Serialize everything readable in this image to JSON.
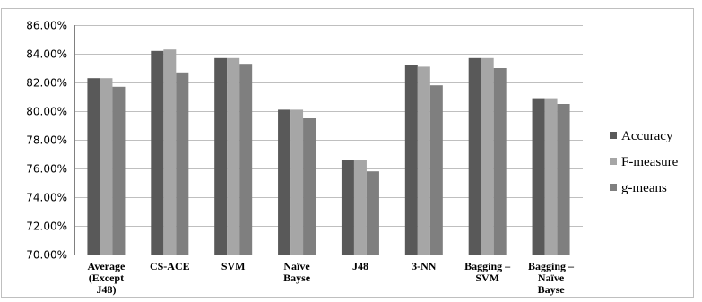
{
  "chart_data": {
    "type": "bar",
    "categories": [
      [
        "Average",
        "(Except",
        "J48)"
      ],
      [
        "CS-ACE"
      ],
      [
        "SVM"
      ],
      [
        "Naïve",
        "Bayse"
      ],
      [
        "J48"
      ],
      [
        "3-NN"
      ],
      [
        "Bagging –",
        "SVM"
      ],
      [
        "Bagging –",
        "Naïve",
        "Bayse"
      ]
    ],
    "series": [
      {
        "name": "Accuracy",
        "color": "#595959",
        "values": [
          82.3,
          84.2,
          83.7,
          80.1,
          76.6,
          83.2,
          83.7,
          80.9
        ]
      },
      {
        "name": "F-measure",
        "color": "#a6a6a6",
        "values": [
          82.3,
          84.3,
          83.7,
          80.1,
          76.6,
          83.1,
          83.7,
          80.9
        ]
      },
      {
        "name": "g-means",
        "color": "#7f7f7f",
        "values": [
          81.7,
          82.7,
          83.3,
          79.5,
          75.8,
          81.8,
          83.0,
          80.5
        ]
      }
    ],
    "ylim": [
      70,
      86
    ],
    "yticks": [
      "70.00%",
      "72.00%",
      "74.00%",
      "76.00%",
      "78.00%",
      "80.00%",
      "82.00%",
      "84.00%",
      "86.00%"
    ],
    "grid": true,
    "legend_position": "right"
  }
}
